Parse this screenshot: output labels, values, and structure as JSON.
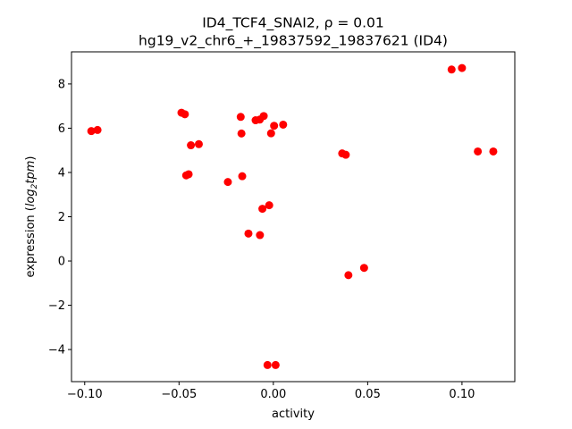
{
  "chart_data": {
    "type": "scatter",
    "title": "ID4_TCF4_SNAI2, ρ = 0.01",
    "subtitle": "hg19_v2_chr6_+_19837592_19837621 (ID4)",
    "xlabel": "activity",
    "ylabel_main": "expression (",
    "ylabel_math": "log",
    "ylabel_sub": "2",
    "ylabel_math2": "tpm",
    "ylabel_close": ")",
    "xlim": [
      -0.107,
      0.128
    ],
    "ylim": [
      -5.45,
      9.45
    ],
    "xticks": [
      {
        "value": -0.1,
        "label": "−0.10"
      },
      {
        "value": -0.05,
        "label": "−0.05"
      },
      {
        "value": 0.0,
        "label": "0.00"
      },
      {
        "value": 0.05,
        "label": "0.05"
      },
      {
        "value": 0.1,
        "label": "0.10"
      }
    ],
    "yticks": [
      {
        "value": -4,
        "label": "−4"
      },
      {
        "value": -2,
        "label": "−2"
      },
      {
        "value": 0,
        "label": "0"
      },
      {
        "value": 2,
        "label": "2"
      },
      {
        "value": 4,
        "label": "4"
      },
      {
        "value": 6,
        "label": "6"
      },
      {
        "value": 8,
        "label": "8"
      }
    ],
    "marker_color": "#ff0000",
    "grid": false,
    "points": [
      {
        "x": -0.0965,
        "y": 5.87
      },
      {
        "x": -0.0932,
        "y": 5.92
      },
      {
        "x": -0.0487,
        "y": 6.7
      },
      {
        "x": -0.0469,
        "y": 6.63
      },
      {
        "x": -0.0462,
        "y": 3.87
      },
      {
        "x": -0.0449,
        "y": 3.92
      },
      {
        "x": -0.0437,
        "y": 5.23
      },
      {
        "x": -0.0395,
        "y": 5.28
      },
      {
        "x": -0.0241,
        "y": 3.57
      },
      {
        "x": -0.0173,
        "y": 6.51
      },
      {
        "x": -0.0169,
        "y": 5.76
      },
      {
        "x": -0.0165,
        "y": 3.83
      },
      {
        "x": -0.0132,
        "y": 1.24
      },
      {
        "x": -0.0094,
        "y": 6.36
      },
      {
        "x": -0.0072,
        "y": 6.39
      },
      {
        "x": -0.0071,
        "y": 1.17
      },
      {
        "x": -0.0058,
        "y": 2.36
      },
      {
        "x": -0.0051,
        "y": 6.55
      },
      {
        "x": -0.0031,
        "y": -4.7
      },
      {
        "x": -0.0022,
        "y": 2.52
      },
      {
        "x": -0.0012,
        "y": 5.77
      },
      {
        "x": 0.0004,
        "y": 6.11
      },
      {
        "x": 0.0012,
        "y": -4.7
      },
      {
        "x": 0.0052,
        "y": 6.16
      },
      {
        "x": 0.0365,
        "y": 4.86
      },
      {
        "x": 0.0384,
        "y": 4.8
      },
      {
        "x": 0.0398,
        "y": -0.64
      },
      {
        "x": 0.0481,
        "y": -0.31
      },
      {
        "x": 0.0945,
        "y": 8.65
      },
      {
        "x": 0.1,
        "y": 8.72
      },
      {
        "x": 0.1084,
        "y": 4.95
      },
      {
        "x": 0.1166,
        "y": 4.95
      }
    ]
  }
}
